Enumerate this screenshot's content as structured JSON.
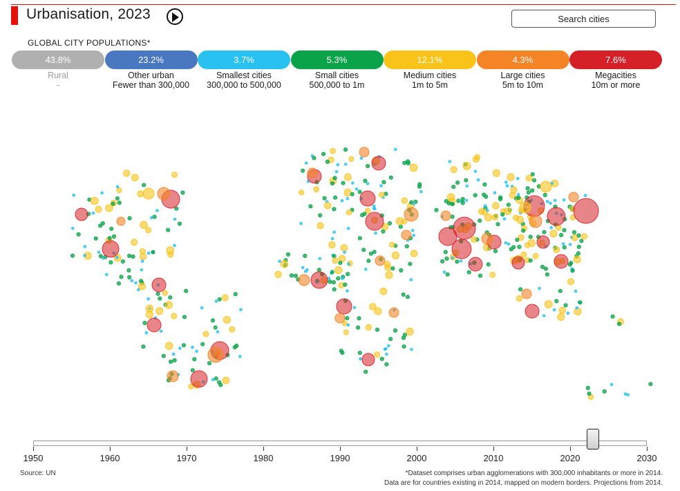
{
  "header": {
    "title": "Urbanisation, 2023",
    "play_icon": "play-icon"
  },
  "search": {
    "placeholder": "Search cities"
  },
  "subtitle": "GLOBAL CITY POPULATIONS*",
  "categories": [
    {
      "key": "rural",
      "share": "43.8%",
      "name": "Rural",
      "range": "-",
      "color": "#b0b0b0",
      "dim": true
    },
    {
      "key": "other",
      "share": "23.2%",
      "name": "Other urban",
      "range": "Fewer than 300,000",
      "color": "#4a78c0"
    },
    {
      "key": "smallest",
      "share": "3.7%",
      "name": "Smallest cities",
      "range": "300,000 to 500,000",
      "color": "#29c2f0"
    },
    {
      "key": "small",
      "share": "5.3%",
      "name": "Small cities",
      "range": "500,000 to 1m",
      "color": "#0aa34a"
    },
    {
      "key": "medium",
      "share": "12.1%",
      "name": "Medium cities",
      "range": "1m to 5m",
      "color": "#f9c31a"
    },
    {
      "key": "large",
      "share": "4.3%",
      "name": "Large cities",
      "range": "5m to 10m",
      "color": "#f48426"
    },
    {
      "key": "mega",
      "share": "7.6%",
      "name": "Megacities",
      "range": "10m or more",
      "color": "#d52027"
    }
  ],
  "timeline": {
    "years": [
      "1950",
      "1960",
      "1970",
      "1980",
      "1990",
      "2000",
      "2010",
      "2020",
      "2030"
    ],
    "min": 1950,
    "max": 2030,
    "current": 2023
  },
  "source": "Source: UN",
  "notes": [
    "*Dataset comprises urban agglomerations with 300,000 inhabitants or more in 2014.",
    "Data are for countries existing in 2014, mapped on modern borders. Projections from 2014."
  ]
}
